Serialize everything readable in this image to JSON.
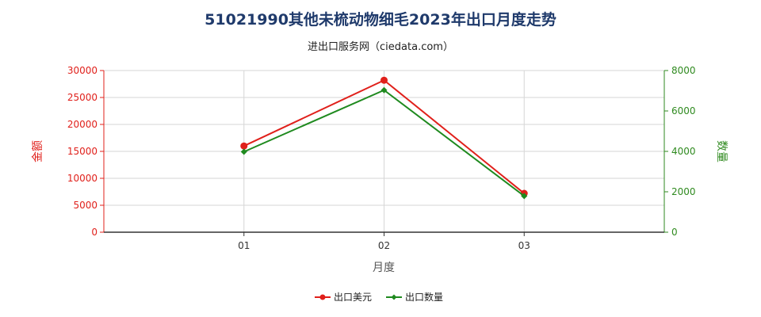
{
  "title": "51021990其他未梳动物细毛2023年出口月度走势",
  "subtitle": "进出口服务网（ciedata.com）",
  "chart_data": {
    "type": "line",
    "title": "51021990其他未梳动物细毛2023年出口月度走势",
    "subtitle": "进出口服务网（ciedata.com）",
    "xlabel": "月度",
    "ylabel_left": "金额",
    "ylabel_right": "数量",
    "categories": [
      "01",
      "02",
      "03"
    ],
    "y_left": {
      "min": 0,
      "max": 30000,
      "ticks": [
        0,
        5000,
        10000,
        15000,
        20000,
        25000,
        30000
      ]
    },
    "y_right": {
      "min": 0,
      "max": 8000,
      "ticks": [
        0,
        2000,
        4000,
        6000,
        8000
      ]
    },
    "grid": true,
    "legend_position": "bottom",
    "series": [
      {
        "name": "出口美元",
        "axis": "left",
        "color": "#e0201b",
        "values": [
          16000,
          28200,
          7200
        ]
      },
      {
        "name": "出口数量",
        "axis": "right",
        "color": "#1f8a1f",
        "values": [
          3980,
          7030,
          1790
        ]
      }
    ]
  }
}
